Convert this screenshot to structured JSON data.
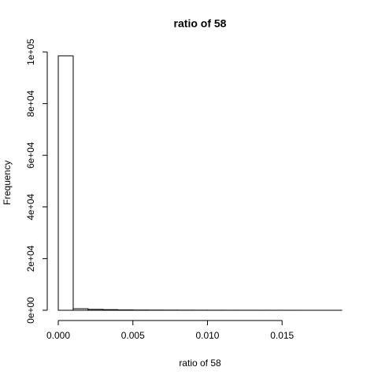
{
  "chart_data": {
    "type": "histogram",
    "title": "ratio of 58",
    "x_label": "ratio of 58",
    "y_label": "Frequency",
    "bins": [
      0,
      0.001,
      0.002,
      0.003,
      0.004,
      0.005,
      0.006,
      0.007,
      0.008,
      0.009,
      0.01,
      0.011,
      0.012,
      0.013,
      0.014,
      0.015,
      0.016,
      0.017,
      0.018,
      0.019
    ],
    "values": [
      98500,
      600,
      350,
      250,
      150,
      100,
      80,
      60,
      50,
      40,
      30,
      25,
      20,
      15,
      10,
      10,
      5,
      5,
      5
    ],
    "color": "#ffffff",
    "xlim": [
      0,
      0.019
    ],
    "xticks": [
      {
        "value": 0,
        "label": "0.000"
      },
      0.005,
      {
        "value": 0.01,
        "label": "0.010"
      },
      0.015
    ],
    "ylim": [
      0,
      100000
    ],
    "yticks": [
      {
        "value": 0,
        "label": "0e+00"
      },
      {
        "value": 20000,
        "label": "2e+04"
      },
      {
        "value": 40000,
        "label": "4e+04"
      },
      {
        "value": 60000,
        "label": "6e+04"
      },
      {
        "value": 80000,
        "label": "8e+04"
      },
      {
        "value": 100000,
        "label": "1e+05"
      }
    ],
    "grid": false
  }
}
